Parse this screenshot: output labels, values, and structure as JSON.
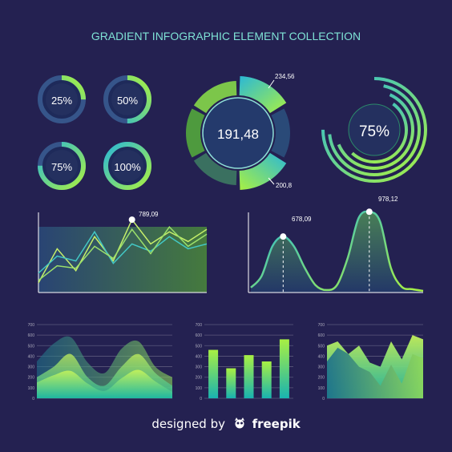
{
  "title": "GRADIENT INFOGRAPHIC ELEMENT COLLECTION",
  "colors": {
    "background": "#242151",
    "accent_cyan": "#2bb8d6",
    "accent_green": "#a8f043",
    "text": "#ffffff"
  },
  "chart_data": [
    {
      "type": "donut",
      "name": "ring-25",
      "label": "25%",
      "percent": 25
    },
    {
      "type": "donut",
      "name": "ring-50",
      "label": "50%",
      "percent": 50
    },
    {
      "type": "donut",
      "name": "ring-75",
      "label": "75%",
      "percent": 75
    },
    {
      "type": "donut",
      "name": "ring-100",
      "label": "100%",
      "percent": 100
    },
    {
      "type": "pie",
      "name": "segmented-donut",
      "center_label": "191,48",
      "segments": 6,
      "highlighted_segments": [
        {
          "label": "234,56"
        },
        {
          "label": "200,8"
        }
      ]
    },
    {
      "type": "radial-bars",
      "name": "radial-arcs",
      "label": "75%",
      "values": [
        0.75,
        0.7,
        0.62,
        0.52
      ]
    },
    {
      "type": "line",
      "name": "line-chart",
      "x": [
        0,
        1,
        2,
        3,
        4,
        5,
        6,
        7,
        8,
        9
      ],
      "annotation": {
        "label": "789,09",
        "x": 5
      },
      "series": [
        {
          "values": [
            40,
            180,
            90,
            230,
            130,
            300,
            200,
            250,
            210,
            260
          ]
        },
        {
          "values": [
            80,
            150,
            130,
            250,
            120,
            200,
            170,
            230,
            180,
            200
          ]
        },
        {
          "values": [
            50,
            110,
            100,
            190,
            140,
            260,
            160,
            270,
            190,
            240
          ]
        }
      ]
    },
    {
      "type": "area",
      "name": "double-peak-area",
      "x": [
        0,
        1,
        2,
        3,
        4,
        5,
        6,
        7,
        8,
        9,
        10,
        11,
        12,
        13,
        14,
        15,
        16
      ],
      "values": [
        60,
        200,
        560,
        678.09,
        560,
        300,
        90,
        30,
        90,
        420,
        900,
        978.12,
        860,
        300,
        70,
        40,
        20
      ],
      "annotations": [
        {
          "label": "678,09",
          "x": 3
        },
        {
          "label": "978,12",
          "x": 11
        }
      ]
    },
    {
      "type": "area",
      "name": "wave-area",
      "yticks": [
        0,
        100,
        200,
        300,
        400,
        500,
        600,
        700
      ],
      "ylim": [
        0,
        700
      ],
      "series": [
        {
          "values": [
            350,
            520,
            580,
            340,
            240,
            470,
            540,
            300,
            200
          ]
        },
        {
          "values": [
            200,
            300,
            420,
            200,
            120,
            300,
            420,
            240,
            120
          ]
        },
        {
          "values": [
            150,
            220,
            260,
            140,
            70,
            190,
            270,
            160,
            60
          ]
        }
      ]
    },
    {
      "type": "bar",
      "name": "bar-chart",
      "yticks": [
        0,
        100,
        200,
        300,
        400,
        500,
        600,
        700
      ],
      "ylim": [
        0,
        700
      ],
      "values": [
        460,
        285,
        410,
        350,
        560
      ]
    },
    {
      "type": "area",
      "name": "jagged-area",
      "yticks": [
        0,
        100,
        200,
        300,
        400,
        500,
        600,
        700
      ],
      "ylim": [
        0,
        700
      ],
      "series": [
        {
          "values": [
            500,
            540,
            420,
            500,
            340,
            300,
            540,
            370,
            600,
            560
          ]
        },
        {
          "values": [
            350,
            480,
            420,
            300,
            250,
            120,
            320,
            140,
            420,
            380
          ]
        }
      ]
    }
  ],
  "footer": {
    "prefix": "designed by",
    "logo_icon": "freepik-logo-icon",
    "brand": "freepik"
  }
}
